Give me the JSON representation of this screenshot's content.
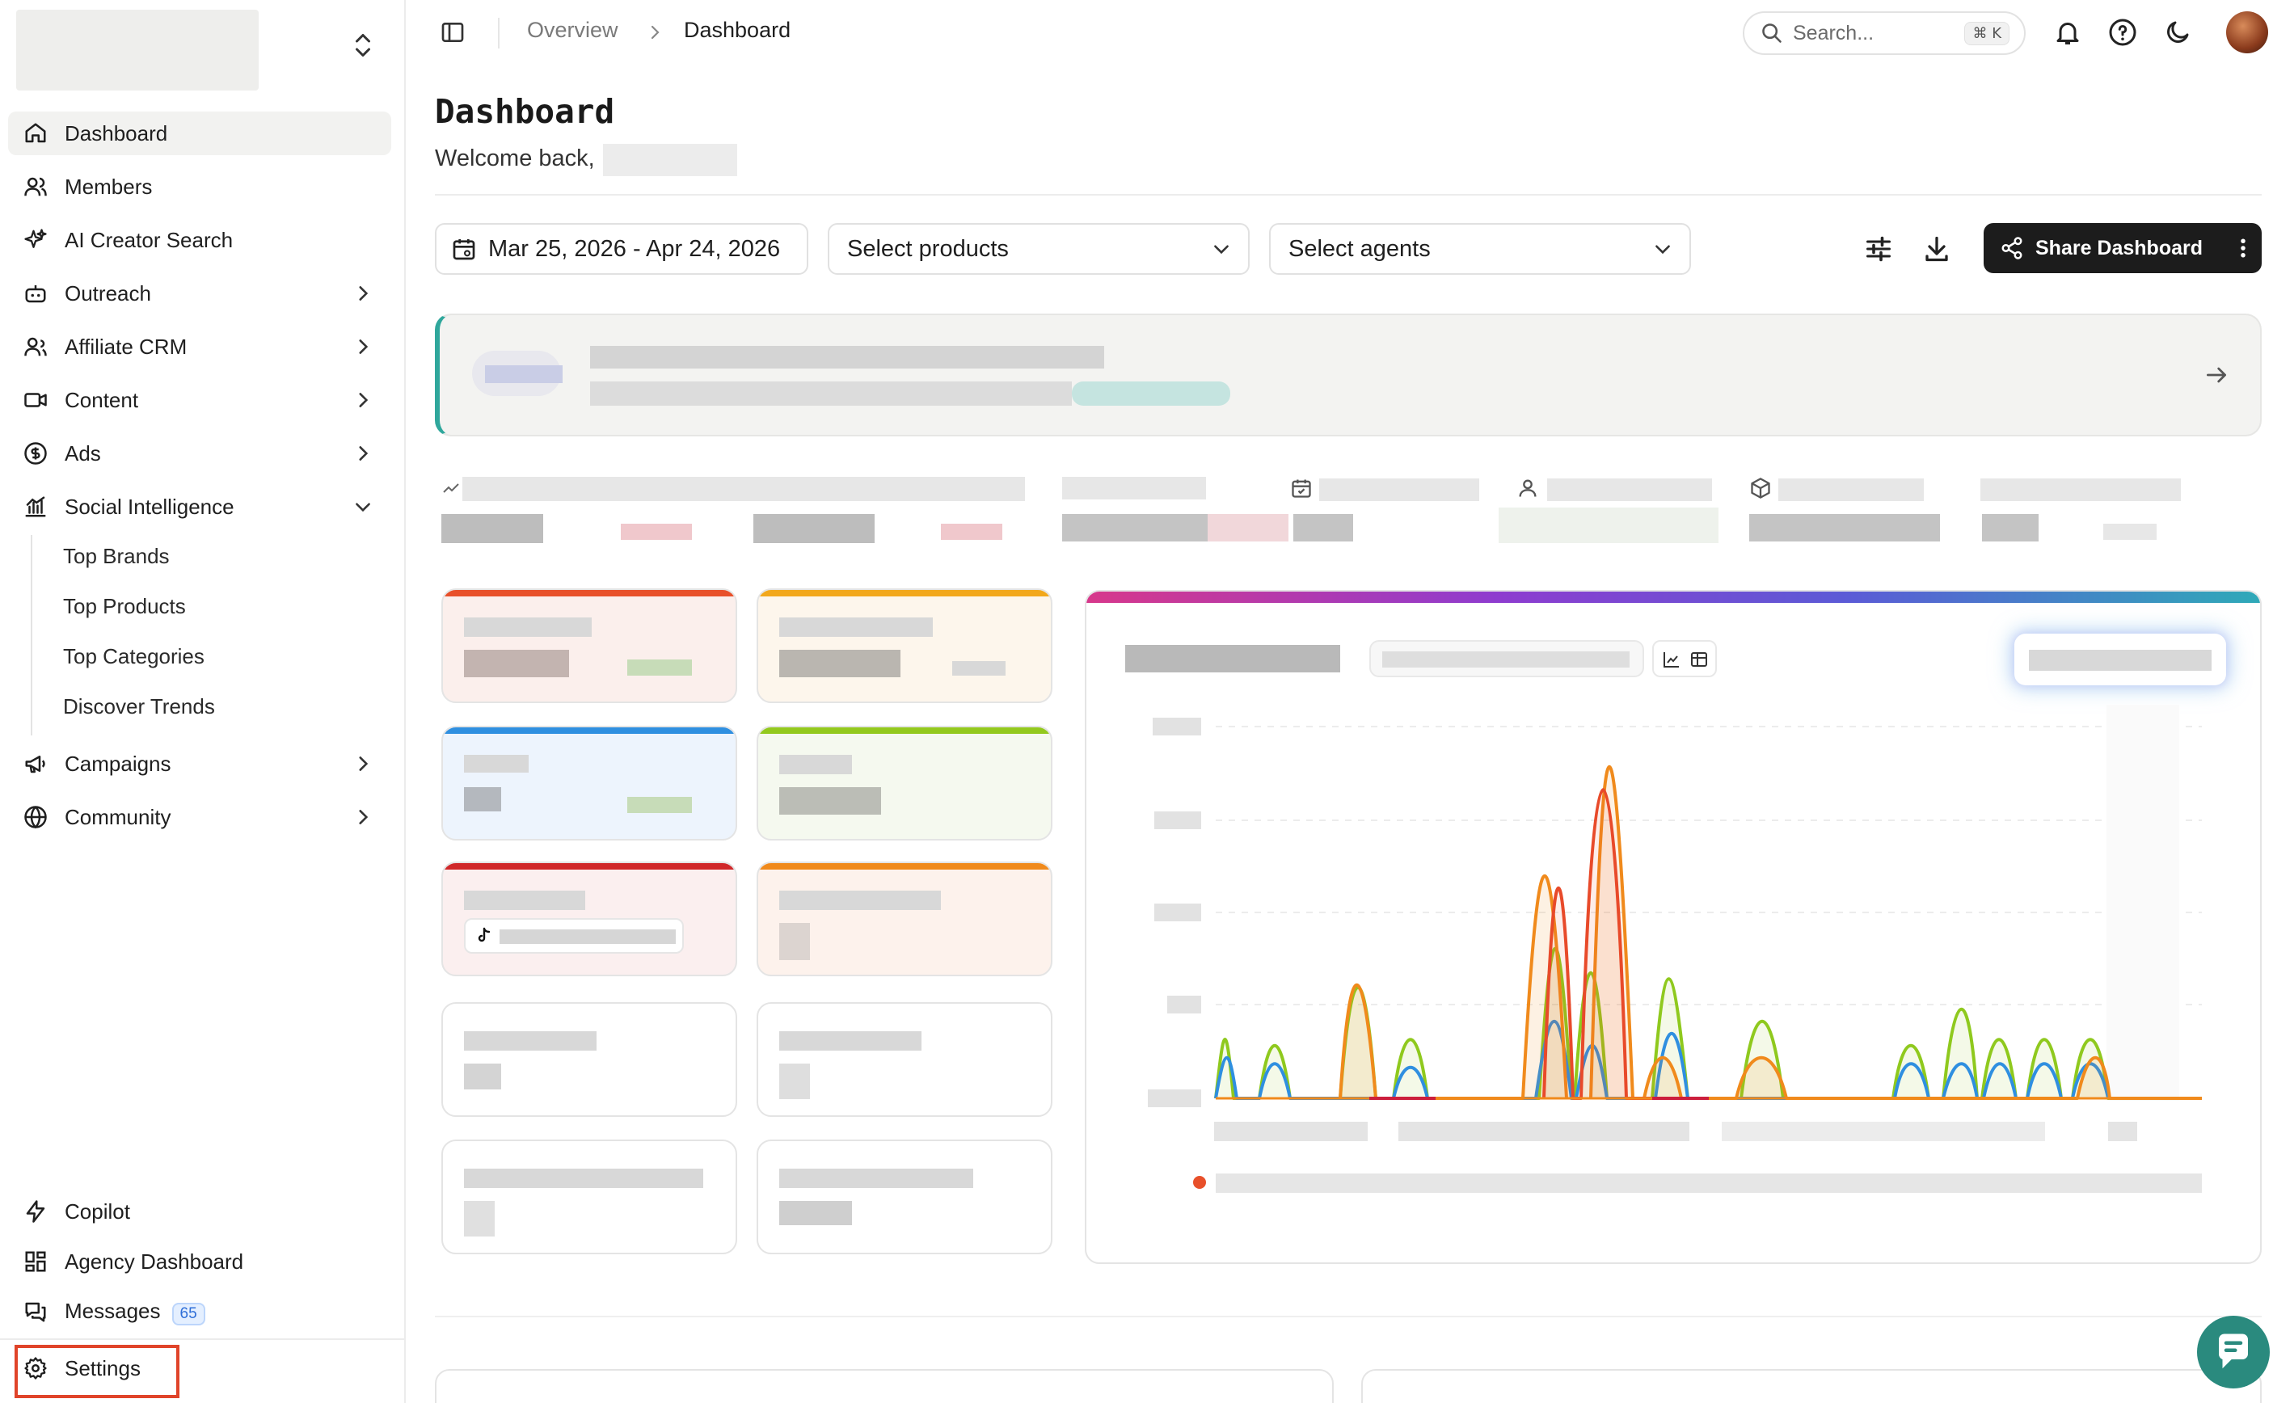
{
  "sidebar": {
    "items": [
      {
        "label": "Dashboard",
        "icon": "home-icon",
        "active": true
      },
      {
        "label": "Members",
        "icon": "users-icon"
      },
      {
        "label": "AI Creator Search",
        "icon": "sparkles-icon"
      },
      {
        "label": "Outreach",
        "icon": "bot-icon",
        "chevron": "right"
      },
      {
        "label": "Affiliate CRM",
        "icon": "user-group-icon",
        "chevron": "right"
      },
      {
        "label": "Content",
        "icon": "video-icon",
        "chevron": "right"
      },
      {
        "label": "Ads",
        "icon": "dollar-circle-icon",
        "chevron": "right"
      },
      {
        "label": "Social Intelligence",
        "icon": "bar-chart-icon",
        "chevron": "down"
      }
    ],
    "sub_items": [
      "Top Brands",
      "Top Products",
      "Top Categories",
      "Discover Trends"
    ],
    "items_after": [
      {
        "label": "Campaigns",
        "icon": "megaphone-icon",
        "chevron": "right"
      },
      {
        "label": "Community",
        "icon": "globe-icon",
        "chevron": "right"
      }
    ],
    "bottom": [
      {
        "label": "Copilot",
        "icon": "lightning-icon"
      },
      {
        "label": "Agency Dashboard",
        "icon": "grid-icon"
      },
      {
        "label": "Messages",
        "icon": "messages-icon",
        "badge": "65"
      },
      {
        "label": "Settings",
        "icon": "gear-icon"
      }
    ]
  },
  "header": {
    "breadcrumb": [
      "Overview",
      "Dashboard"
    ],
    "search_placeholder": "Search...",
    "search_shortcut": "⌘ K"
  },
  "main": {
    "title": "Dashboard",
    "welcome": "Welcome back, ",
    "date_range": "Mar 25, 2026 - Apr 24, 2026",
    "products_placeholder": "Select products",
    "agents_placeholder": "Select agents",
    "share_label": "Share Dashboard"
  },
  "colors": {
    "accent_teal": "#2fa79c",
    "settings_highlight": "#e0442a",
    "chart_red": "#e84a2a",
    "chart_orange": "#f08a1c",
    "chart_green": "#8fc91e",
    "chart_blue": "#2f8fe0"
  }
}
